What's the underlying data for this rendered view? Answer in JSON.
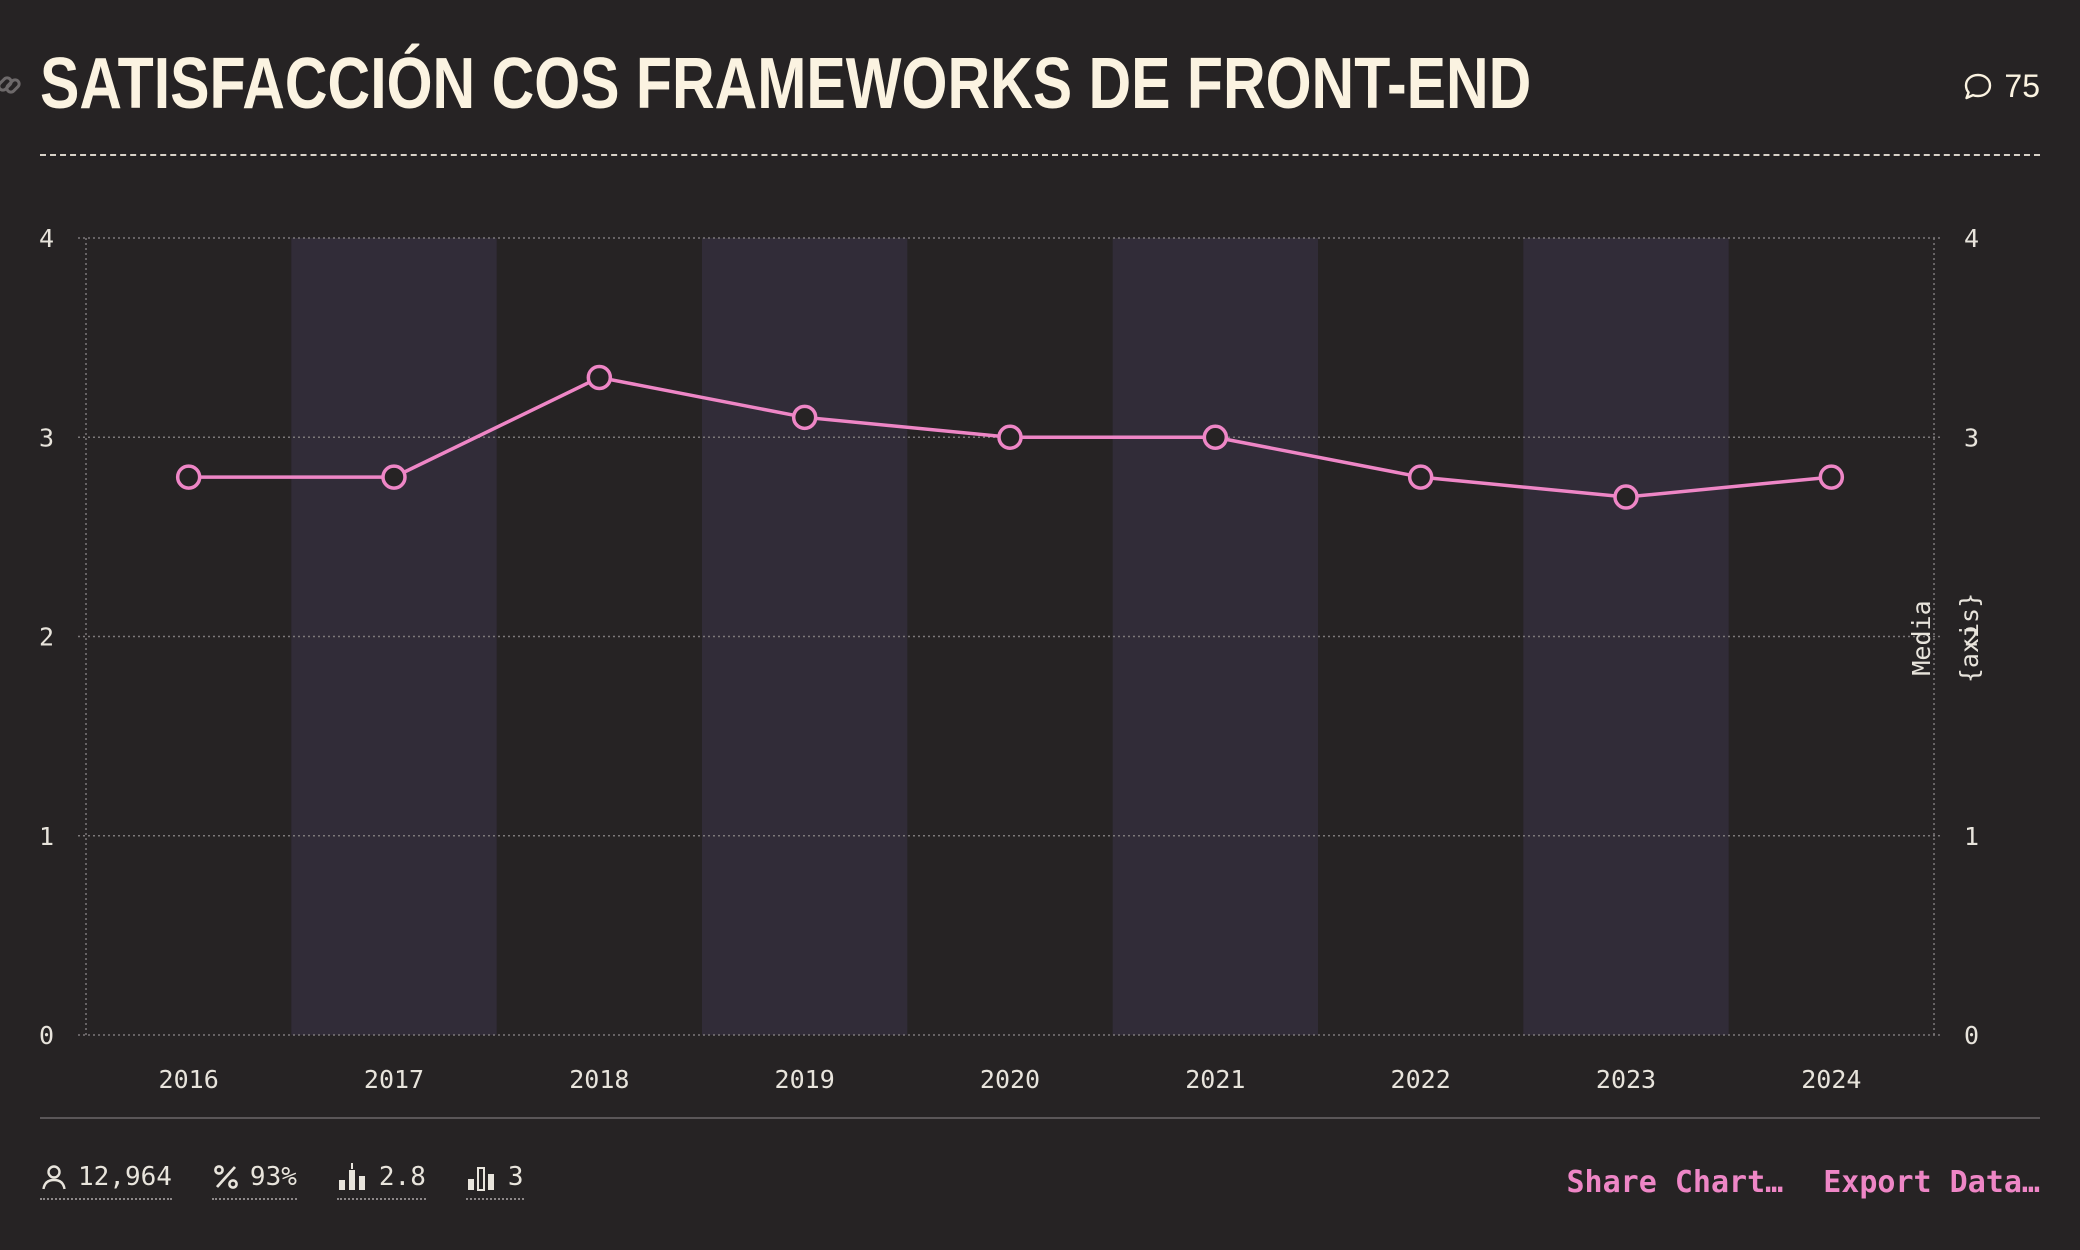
{
  "header": {
    "title": "SATISFACCIÓN COS FRAMEWORKS DE FRONT-END",
    "comment_count": "75"
  },
  "footer": {
    "stats": [
      {
        "icon": "person-icon",
        "value": "12,964"
      },
      {
        "icon": "percent-icon",
        "value": "93%"
      },
      {
        "icon": "mean-bars-icon",
        "value": "2.8"
      },
      {
        "icon": "bars-icon",
        "value": "3"
      }
    ],
    "share_label": "Share Chart…",
    "export_label": "Export Data…"
  },
  "colors": {
    "background": "#262324",
    "band": "#312c38",
    "series": "#ee86c6",
    "title": "#fbf3e1"
  },
  "chart_data": {
    "type": "line",
    "title": "SATISFACCIÓN COS FRAMEWORKS DE FRONT-END",
    "categories": [
      "2016",
      "2017",
      "2018",
      "2019",
      "2020",
      "2021",
      "2022",
      "2023",
      "2024"
    ],
    "series": [
      {
        "values": [
          2.8,
          2.8,
          3.3,
          3.1,
          3.0,
          3.0,
          2.8,
          2.7,
          2.8
        ]
      }
    ],
    "ylim": [
      0,
      4
    ],
    "yticks": [
      0,
      1,
      2,
      3,
      4
    ],
    "ylabel_right": [
      "Media",
      "{axis}"
    ],
    "grid": true,
    "legend": "none"
  }
}
